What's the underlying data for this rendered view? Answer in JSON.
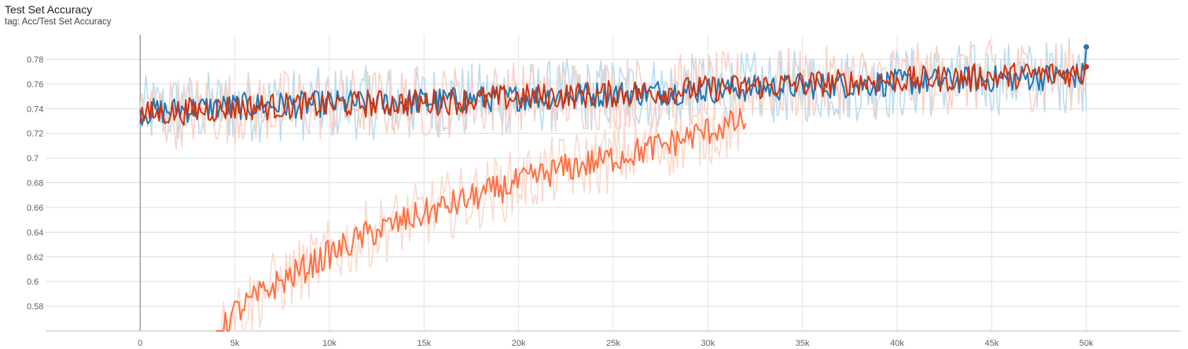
{
  "card": {
    "title": "Test Set Accuracy",
    "tag": "tag: Acc/Test Set Accuracy"
  },
  "chart_data": {
    "type": "line",
    "title": "Test Set Accuracy",
    "subtitle": "tag: Acc/Test Set Accuracy",
    "xlabel": "",
    "ylabel": "",
    "xlim": [
      -5000,
      55000
    ],
    "ylim": [
      0.56,
      0.8
    ],
    "x_ticks": [
      0,
      5000,
      10000,
      15000,
      20000,
      25000,
      30000,
      35000,
      40000,
      45000,
      50000
    ],
    "x_tick_labels": [
      "0",
      "5k",
      "10k",
      "15k",
      "20k",
      "25k",
      "30k",
      "35k",
      "40k",
      "45k",
      "50k"
    ],
    "y_ticks": [
      0.58,
      0.6,
      0.62,
      0.64,
      0.66,
      0.68,
      0.7,
      0.72,
      0.74,
      0.76,
      0.78
    ],
    "y_tick_labels": [
      "0.58",
      "0.6",
      "0.62",
      "0.64",
      "0.66",
      "0.68",
      "0.7",
      "0.72",
      "0.74",
      "0.76",
      "0.78"
    ],
    "grid": true,
    "legend": "none",
    "series": [
      {
        "color": "#1f77b4",
        "raw_color": "#b9dcef",
        "x_start": 0,
        "x_end": 50000,
        "points": 500,
        "smoothed_trend": [
          {
            "x": 0,
            "y": 0.737
          },
          {
            "x": 5000,
            "y": 0.742
          },
          {
            "x": 10000,
            "y": 0.744
          },
          {
            "x": 15000,
            "y": 0.746
          },
          {
            "x": 20000,
            "y": 0.749
          },
          {
            "x": 25000,
            "y": 0.752
          },
          {
            "x": 30000,
            "y": 0.755
          },
          {
            "x": 35000,
            "y": 0.758
          },
          {
            "x": 40000,
            "y": 0.761
          },
          {
            "x": 45000,
            "y": 0.764
          },
          {
            "x": 50000,
            "y": 0.767
          }
        ],
        "last_value": 0.79
      },
      {
        "color": "#cc3311",
        "raw_color": "#f6d2c8",
        "x_start": 0,
        "x_end": 50000,
        "points": 500,
        "smoothed_trend": [
          {
            "x": 0,
            "y": 0.735
          },
          {
            "x": 5000,
            "y": 0.741
          },
          {
            "x": 10000,
            "y": 0.743
          },
          {
            "x": 15000,
            "y": 0.745
          },
          {
            "x": 20000,
            "y": 0.749
          },
          {
            "x": 25000,
            "y": 0.752
          },
          {
            "x": 30000,
            "y": 0.756
          },
          {
            "x": 35000,
            "y": 0.76
          },
          {
            "x": 40000,
            "y": 0.763
          },
          {
            "x": 45000,
            "y": 0.766
          },
          {
            "x": 50000,
            "y": 0.769
          }
        ],
        "last_value": 0.774
      },
      {
        "color": "#ff7043",
        "raw_color": "#fbd9cc",
        "x_start": 4000,
        "x_end": 32000,
        "points": 280,
        "smoothed_trend": [
          {
            "x": 4000,
            "y": 0.552
          },
          {
            "x": 5000,
            "y": 0.575
          },
          {
            "x": 7000,
            "y": 0.596
          },
          {
            "x": 10000,
            "y": 0.622
          },
          {
            "x": 12000,
            "y": 0.638
          },
          {
            "x": 15000,
            "y": 0.655
          },
          {
            "x": 18000,
            "y": 0.67
          },
          {
            "x": 20000,
            "y": 0.68
          },
          {
            "x": 22000,
            "y": 0.69
          },
          {
            "x": 25000,
            "y": 0.7
          },
          {
            "x": 28000,
            "y": 0.712
          },
          {
            "x": 30000,
            "y": 0.722
          },
          {
            "x": 32000,
            "y": 0.73
          }
        ]
      }
    ]
  }
}
